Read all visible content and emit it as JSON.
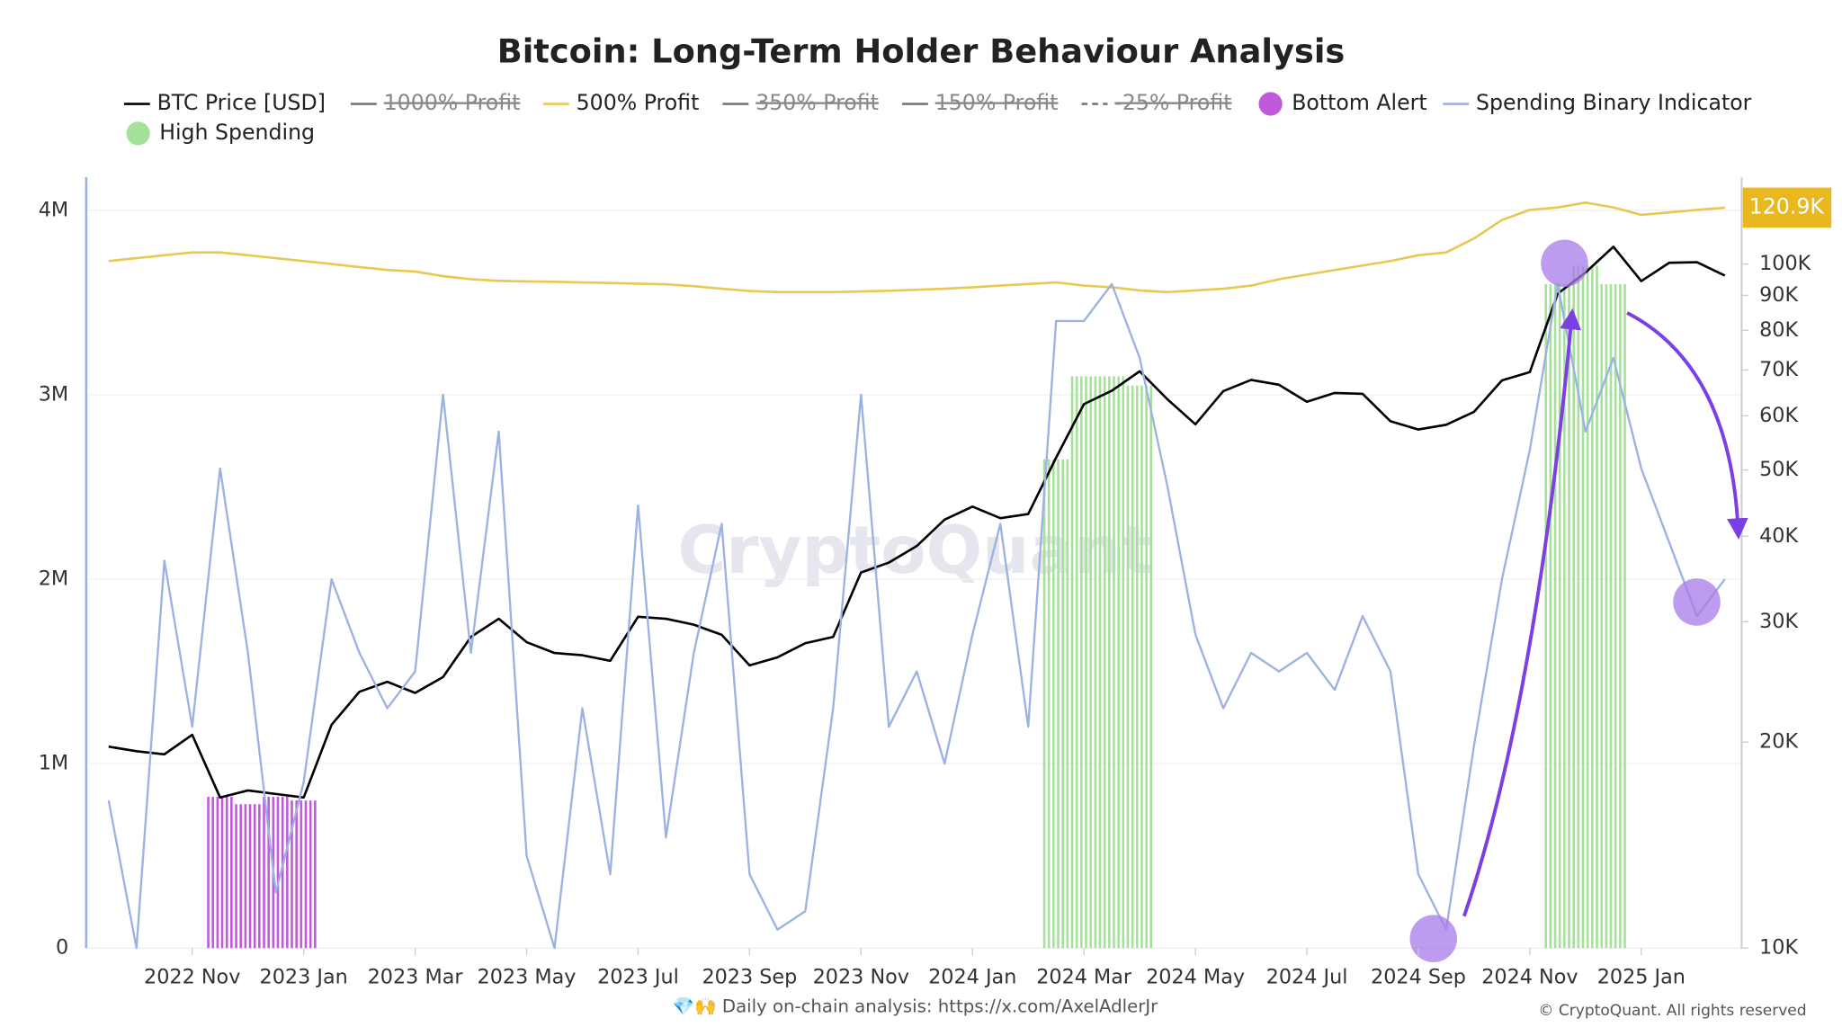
{
  "chart_data": {
    "type": "line",
    "title": "Bitcoin: Long-Term Holder Behaviour Analysis",
    "watermark": "CryptoQuant",
    "footer": "💎🙌 Daily on-chain analysis: https://x.com/AxelAdlerJr",
    "copyright": "© CryptoQuant. All rights reserved",
    "categories": [
      null,
      null,
      null,
      "2022 Nov",
      null,
      null,
      null,
      "2023 Jan",
      null,
      null,
      null,
      "2023 Mar",
      null,
      null,
      null,
      "2023 May",
      null,
      null,
      null,
      "2023 Jul",
      null,
      null,
      null,
      "2023 Sep",
      null,
      null,
      null,
      "2023 Nov",
      null,
      null,
      null,
      "2024 Jan",
      null,
      null,
      null,
      "2024 Mar",
      null,
      null,
      null,
      "2024 May",
      null,
      null,
      null,
      "2024 Jul",
      null,
      null,
      null,
      "2024 Sep",
      null,
      null,
      null,
      "2024 Nov",
      null,
      null,
      null,
      "2025 Jan",
      null,
      null,
      null
    ],
    "ylim": [
      0,
      4180000
    ],
    "yticks": [
      {
        "value": 0,
        "label": "0"
      },
      {
        "value": 1000000,
        "label": "1M"
      },
      {
        "value": 2000000,
        "label": "2M"
      },
      {
        "value": 3000000,
        "label": "3M"
      },
      {
        "value": 4000000,
        "label": "4M"
      }
    ],
    "y2lim": [
      10000,
      134000
    ],
    "y2_log": true,
    "y2ticks": [
      {
        "value": 10000,
        "label": "10K"
      },
      {
        "value": 20000,
        "label": "20K"
      },
      {
        "value": 30000,
        "label": "30K"
      },
      {
        "value": 40000,
        "label": "40K"
      },
      {
        "value": 50000,
        "label": "50K"
      },
      {
        "value": 60000,
        "label": "60K"
      },
      {
        "value": 70000,
        "label": "70K"
      },
      {
        "value": 80000,
        "label": "80K"
      },
      {
        "value": 90000,
        "label": "90K"
      },
      {
        "value": 100000,
        "label": "100K"
      }
    ],
    "grid": true,
    "series": [
      {
        "name": "BTC Price [USD]",
        "color": "#000000",
        "style": "line",
        "axis": "y2",
        "visible": true,
        "values": [
          19700,
          19400,
          19200,
          20500,
          16600,
          17000,
          16800,
          16600,
          21200,
          23700,
          24500,
          23600,
          24900,
          28500,
          30300,
          28000,
          27000,
          26800,
          26300,
          30500,
          30300,
          29700,
          28700,
          25900,
          26600,
          27900,
          28500,
          35400,
          36600,
          38700,
          42300,
          44200,
          42500,
          43100,
          52100,
          62400,
          65300,
          69700,
          63400,
          58300,
          65200,
          67700,
          66600,
          62900,
          64800,
          64600,
          58900,
          57300,
          58200,
          60800,
          67600,
          69500,
          90500,
          97200,
          106000,
          94400,
          100400,
          100600,
          96200
        ]
      },
      {
        "name": "1000% Profit",
        "color": "#777777",
        "style": "line",
        "visible": false
      },
      {
        "name": "500% Profit",
        "color": "#e8c852",
        "style": "line",
        "axis": "y2",
        "visible": true,
        "last_value_label": "120.9K",
        "values": [
          101000,
          102000,
          103000,
          104000,
          104000,
          103000,
          102000,
          101000,
          100000,
          99000,
          98000,
          97500,
          96000,
          95000,
          94500,
          94300,
          94200,
          94000,
          93800,
          93600,
          93400,
          92800,
          92000,
          91300,
          91000,
          91000,
          91000,
          91200,
          91400,
          91700,
          92000,
          92500,
          93000,
          93500,
          94000,
          93000,
          92500,
          91500,
          91000,
          91500,
          92000,
          93000,
          95000,
          96500,
          98000,
          99500,
          101000,
          103000,
          104000,
          109000,
          116000,
          120000,
          121000,
          123000,
          121000,
          118000,
          119000,
          120000,
          120900
        ]
      },
      {
        "name": "350% Profit",
        "color": "#777777",
        "style": "line",
        "visible": false
      },
      {
        "name": "150% Profit",
        "color": "#777777",
        "style": "line",
        "visible": false
      },
      {
        "name": "-25% Profit",
        "color": "#777777",
        "style": "line",
        "dash": true,
        "visible": false
      },
      {
        "name": "Bottom Alert",
        "color": "#c159dd",
        "style": "bar",
        "axis": "y",
        "visible": true,
        "values": [
          null,
          null,
          null,
          null,
          820000,
          780000,
          820000,
          800000,
          null,
          null,
          null,
          null,
          null,
          null,
          null,
          null,
          null,
          null,
          null,
          null,
          null,
          null,
          null,
          null,
          null,
          null,
          null,
          null,
          null,
          null,
          null,
          null,
          null,
          null,
          null,
          null,
          null,
          null,
          null,
          null,
          null,
          null,
          null,
          null,
          null,
          null,
          null,
          null,
          null,
          null,
          null,
          null,
          null,
          null,
          null,
          null,
          null,
          null,
          null
        ]
      },
      {
        "name": "Spending Binary Indicator",
        "color": "#9db2e2",
        "style": "line",
        "axis": "y",
        "visible": true,
        "values": [
          800000,
          0,
          2100000,
          1200000,
          2600000,
          1600000,
          300000,
          900000,
          2000000,
          1600000,
          1300000,
          1500000,
          3000000,
          1600000,
          2800000,
          500000,
          0,
          1300000,
          400000,
          2400000,
          600000,
          1600000,
          2300000,
          400000,
          100000,
          200000,
          1300000,
          3000000,
          1200000,
          1500000,
          1000000,
          1700000,
          2300000,
          1200000,
          3400000,
          3400000,
          3600000,
          3200000,
          2500000,
          1700000,
          1300000,
          1600000,
          1500000,
          1600000,
          1400000,
          1800000,
          1500000,
          400000,
          100000,
          1100000,
          2000000,
          2700000,
          3600000,
          2800000,
          3200000,
          2600000,
          2200000,
          1800000,
          2000000
        ]
      },
      {
        "name": "High Spending",
        "color": "#a6e19a",
        "style": "bar",
        "axis": "y",
        "visible": true,
        "values": [
          null,
          null,
          null,
          null,
          null,
          null,
          null,
          null,
          null,
          null,
          null,
          null,
          null,
          null,
          null,
          null,
          null,
          null,
          null,
          null,
          null,
          null,
          null,
          null,
          null,
          null,
          null,
          null,
          null,
          null,
          null,
          null,
          null,
          null,
          2650000,
          3100000,
          3100000,
          3050000,
          null,
          null,
          null,
          null,
          null,
          null,
          null,
          null,
          null,
          null,
          null,
          null,
          null,
          null,
          3600000,
          3700000,
          3600000,
          null,
          null,
          null,
          null
        ]
      }
    ]
  }
}
